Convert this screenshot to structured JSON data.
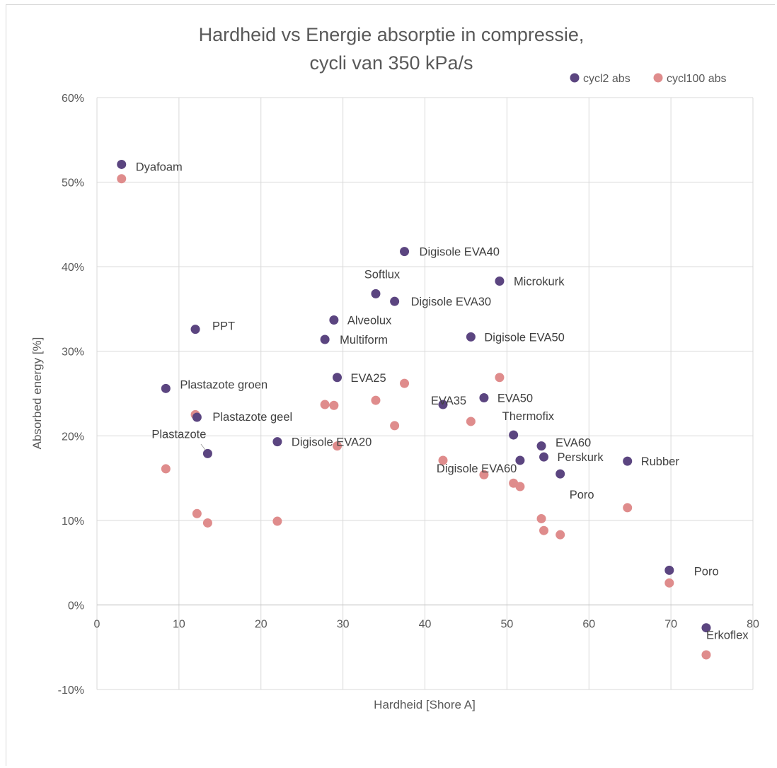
{
  "chart_data": {
    "type": "scatter",
    "title": [
      "Hardheid vs Energie absorptie in compressie,",
      "cycli van 350 kPa/s"
    ],
    "xlabel": "Hardheid [Shore A]",
    "ylabel": "Absorbed energy [%]",
    "xlim": [
      0,
      80
    ],
    "ylim": [
      -10,
      60
    ],
    "x_ticks": [
      0,
      10,
      20,
      30,
      40,
      50,
      60,
      70,
      80
    ],
    "y_ticks": [
      -10,
      0,
      10,
      20,
      30,
      40,
      50,
      60
    ],
    "y_tick_labels": [
      "-10%",
      "0%",
      "10%",
      "20%",
      "30%",
      "40%",
      "50%",
      "60%"
    ],
    "grid": true,
    "legend_position": "top-right",
    "series": [
      {
        "name": "cycl2 abs",
        "color": "#5b4580",
        "points": [
          {
            "x": 3,
            "y": 52.1,
            "label": "Dyafoam"
          },
          {
            "x": 8.4,
            "y": 25.6,
            "label": "Plastazote groen"
          },
          {
            "x": 12,
            "y": 32.6,
            "label": "PPT"
          },
          {
            "x": 12.2,
            "y": 22.2,
            "label": "Plastazote geel"
          },
          {
            "x": 13.5,
            "y": 17.9,
            "label": "Plastazote"
          },
          {
            "x": 22,
            "y": 19.3,
            "label": "Digisole EVA20"
          },
          {
            "x": 27.8,
            "y": 31.4,
            "label": "Multiform"
          },
          {
            "x": 28.9,
            "y": 33.7,
            "label": "Alveolux"
          },
          {
            "x": 29.3,
            "y": 26.9,
            "label": "EVA25"
          },
          {
            "x": 34,
            "y": 36.8,
            "label": "Softlux"
          },
          {
            "x": 36.3,
            "y": 35.9,
            "label": "Digisole EVA30"
          },
          {
            "x": 37.5,
            "y": 41.8,
            "label": "Digisole EVA40"
          },
          {
            "x": 42.2,
            "y": 23.7,
            "label": "EVA35"
          },
          {
            "x": 45.6,
            "y": 31.7,
            "label": "Digisole EVA50"
          },
          {
            "x": 47.2,
            "y": 24.5,
            "label": "EVA50"
          },
          {
            "x": 49.1,
            "y": 38.3,
            "label": "Microkurk"
          },
          {
            "x": 50.8,
            "y": 20.1,
            "label": "Thermofix"
          },
          {
            "x": 51.6,
            "y": 17.1,
            "label": "Digisole EVA60"
          },
          {
            "x": 54.2,
            "y": 18.8,
            "label": "EVA60"
          },
          {
            "x": 54.5,
            "y": 17.5,
            "label": "Perskurk"
          },
          {
            "x": 56.5,
            "y": 15.5,
            "label": "Poro"
          },
          {
            "x": 64.7,
            "y": 17,
            "label": "Rubber"
          },
          {
            "x": 69.8,
            "y": 4.1,
            "label": "Poro"
          },
          {
            "x": 74.3,
            "y": -2.7,
            "label": "Erkoflex"
          }
        ]
      },
      {
        "name": "cycl100 abs",
        "color": "#df8c8c",
        "points": [
          {
            "x": 3,
            "y": 50.4
          },
          {
            "x": 8.4,
            "y": 16.1
          },
          {
            "x": 12,
            "y": 22.5
          },
          {
            "x": 12.2,
            "y": 10.8
          },
          {
            "x": 13.5,
            "y": 9.7
          },
          {
            "x": 22,
            "y": 9.9
          },
          {
            "x": 27.8,
            "y": 23.7
          },
          {
            "x": 28.9,
            "y": 23.6
          },
          {
            "x": 29.3,
            "y": 18.8
          },
          {
            "x": 34,
            "y": 24.2
          },
          {
            "x": 36.3,
            "y": 21.2
          },
          {
            "x": 37.5,
            "y": 26.2
          },
          {
            "x": 42.2,
            "y": 17.1
          },
          {
            "x": 45.6,
            "y": 21.7
          },
          {
            "x": 47.2,
            "y": 15.4
          },
          {
            "x": 49.1,
            "y": 26.9
          },
          {
            "x": 50.8,
            "y": 14.4
          },
          {
            "x": 51.6,
            "y": 14
          },
          {
            "x": 54.2,
            "y": 10.2
          },
          {
            "x": 54.5,
            "y": 8.8
          },
          {
            "x": 56.5,
            "y": 8.3
          },
          {
            "x": 64.7,
            "y": 11.5
          },
          {
            "x": 69.8,
            "y": 2.6
          },
          {
            "x": 74.3,
            "y": -5.9
          }
        ]
      }
    ]
  }
}
